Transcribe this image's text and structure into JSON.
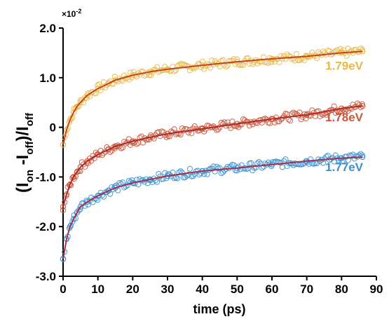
{
  "chart_data": {
    "type": "scatter",
    "xlabel": "time (ps)",
    "ylabel_parts": [
      "(I",
      "on",
      " -I",
      "off",
      ")/I",
      "off"
    ],
    "y_multiplier": "×10",
    "y_multiplier_exp": "-2",
    "xlim": [
      0,
      90
    ],
    "ylim": [
      -3.0,
      2.0
    ],
    "x_ticks": [
      0,
      10,
      20,
      30,
      40,
      50,
      60,
      70,
      80,
      90
    ],
    "x_tick_labels": [
      "0",
      "10",
      "20",
      "30",
      "40",
      "50",
      "60",
      "70",
      "80",
      "90"
    ],
    "y_ticks": [
      -3.0,
      -2.0,
      -1.0,
      0,
      1.0,
      2.0
    ],
    "y_tick_labels": [
      "-3.0",
      "-2.0",
      "-1.0",
      "0",
      "1.0",
      "2.0"
    ],
    "series": [
      {
        "name": "1.79eV",
        "color": "#e8b84a",
        "fit_color": "#c0461f",
        "x": [
          0,
          1,
          2,
          3,
          4,
          5,
          7,
          10,
          13,
          15,
          20,
          25,
          30,
          40,
          50,
          60,
          70,
          80,
          86
        ],
        "y": [
          -0.35,
          -0.05,
          0.15,
          0.3,
          0.42,
          0.5,
          0.65,
          0.78,
          0.88,
          0.95,
          1.05,
          1.12,
          1.17,
          1.25,
          1.32,
          1.38,
          1.43,
          1.5,
          1.53
        ]
      },
      {
        "name": "1.78eV",
        "color": "#c9573b",
        "fit_color": "#b02a2a",
        "x": [
          0,
          1,
          2,
          3,
          4,
          5,
          7,
          10,
          13,
          15,
          20,
          25,
          30,
          40,
          50,
          60,
          70,
          80,
          86
        ],
        "y": [
          -1.6,
          -1.35,
          -1.15,
          -1.0,
          -0.9,
          -0.8,
          -0.68,
          -0.55,
          -0.45,
          -0.38,
          -0.28,
          -0.2,
          -0.13,
          -0.03,
          0.07,
          0.17,
          0.25,
          0.38,
          0.43
        ]
      },
      {
        "name": "1.77eV",
        "color": "#3b8fd0",
        "fit_color": "#a3324a",
        "x": [
          0,
          1,
          2,
          3,
          4,
          5,
          7,
          10,
          13,
          15,
          20,
          25,
          30,
          40,
          50,
          60,
          70,
          80,
          86
        ],
        "y": [
          -2.65,
          -2.25,
          -2.0,
          -1.85,
          -1.72,
          -1.6,
          -1.5,
          -1.38,
          -1.28,
          -1.22,
          -1.12,
          -1.05,
          -0.98,
          -0.88,
          -0.82,
          -0.75,
          -0.68,
          -0.62,
          -0.6
        ]
      }
    ]
  }
}
